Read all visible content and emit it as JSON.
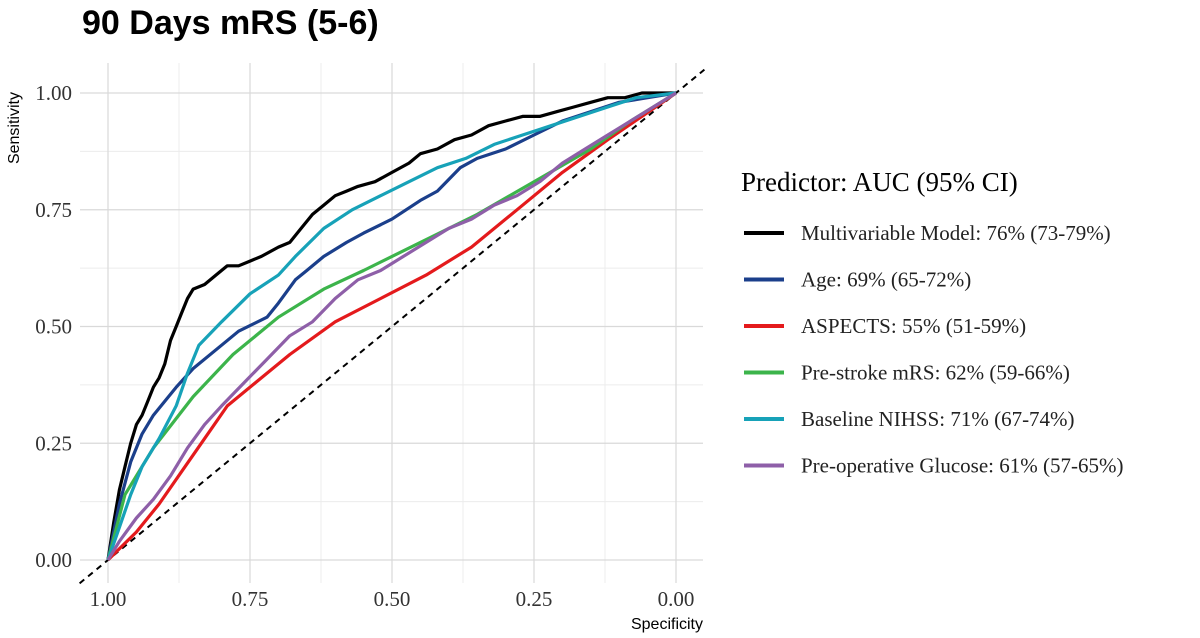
{
  "chart_data": {
    "type": "line",
    "title": "90 Days mRS (5-6)",
    "xlabel": "Specificity",
    "ylabel": "Sensitivity",
    "xlim": [
      1.0,
      0.0
    ],
    "ylim": [
      0.0,
      1.0
    ],
    "x_reversed": true,
    "xticks": [
      "1.00",
      "0.75",
      "0.50",
      "0.25",
      "0.00"
    ],
    "yticks": [
      "0.00",
      "0.25",
      "0.50",
      "0.75",
      "1.00"
    ],
    "grid": true,
    "legend_title": "Predictor: AUC (95% CI)",
    "legend_position": "right",
    "reference_line": {
      "style": "dashed",
      "from": [
        1.0,
        0.0
      ],
      "to": [
        0.0,
        1.0
      ]
    },
    "series": [
      {
        "name": "Multivariable Model: 76% (73-79%)",
        "color": "#000000",
        "points": [
          [
            1.0,
            0.0
          ],
          [
            0.99,
            0.08
          ],
          [
            0.98,
            0.15
          ],
          [
            0.97,
            0.2
          ],
          [
            0.96,
            0.25
          ],
          [
            0.95,
            0.29
          ],
          [
            0.94,
            0.31
          ],
          [
            0.93,
            0.34
          ],
          [
            0.92,
            0.37
          ],
          [
            0.91,
            0.39
          ],
          [
            0.9,
            0.42
          ],
          [
            0.89,
            0.47
          ],
          [
            0.88,
            0.5
          ],
          [
            0.87,
            0.53
          ],
          [
            0.86,
            0.56
          ],
          [
            0.85,
            0.58
          ],
          [
            0.83,
            0.59
          ],
          [
            0.81,
            0.61
          ],
          [
            0.79,
            0.63
          ],
          [
            0.77,
            0.63
          ],
          [
            0.75,
            0.64
          ],
          [
            0.73,
            0.65
          ],
          [
            0.7,
            0.67
          ],
          [
            0.68,
            0.68
          ],
          [
            0.66,
            0.71
          ],
          [
            0.64,
            0.74
          ],
          [
            0.62,
            0.76
          ],
          [
            0.6,
            0.78
          ],
          [
            0.58,
            0.79
          ],
          [
            0.56,
            0.8
          ],
          [
            0.53,
            0.81
          ],
          [
            0.5,
            0.83
          ],
          [
            0.47,
            0.85
          ],
          [
            0.45,
            0.87
          ],
          [
            0.42,
            0.88
          ],
          [
            0.39,
            0.9
          ],
          [
            0.36,
            0.91
          ],
          [
            0.33,
            0.93
          ],
          [
            0.3,
            0.94
          ],
          [
            0.27,
            0.95
          ],
          [
            0.24,
            0.95
          ],
          [
            0.21,
            0.96
          ],
          [
            0.18,
            0.97
          ],
          [
            0.15,
            0.98
          ],
          [
            0.12,
            0.99
          ],
          [
            0.09,
            0.99
          ],
          [
            0.06,
            1.0
          ],
          [
            0.03,
            1.0
          ],
          [
            0.0,
            1.0
          ]
        ]
      },
      {
        "name": "Age: 69% (65-72%)",
        "color": "#1b3f8b",
        "points": [
          [
            1.0,
            0.0
          ],
          [
            0.99,
            0.06
          ],
          [
            0.98,
            0.12
          ],
          [
            0.96,
            0.21
          ],
          [
            0.94,
            0.27
          ],
          [
            0.92,
            0.31
          ],
          [
            0.9,
            0.34
          ],
          [
            0.88,
            0.37
          ],
          [
            0.85,
            0.41
          ],
          [
            0.8,
            0.46
          ],
          [
            0.77,
            0.49
          ],
          [
            0.72,
            0.52
          ],
          [
            0.7,
            0.55
          ],
          [
            0.67,
            0.6
          ],
          [
            0.65,
            0.62
          ],
          [
            0.62,
            0.65
          ],
          [
            0.58,
            0.68
          ],
          [
            0.55,
            0.7
          ],
          [
            0.5,
            0.73
          ],
          [
            0.45,
            0.77
          ],
          [
            0.42,
            0.79
          ],
          [
            0.38,
            0.84
          ],
          [
            0.35,
            0.86
          ],
          [
            0.3,
            0.88
          ],
          [
            0.25,
            0.91
          ],
          [
            0.2,
            0.94
          ],
          [
            0.15,
            0.96
          ],
          [
            0.1,
            0.98
          ],
          [
            0.05,
            0.99
          ],
          [
            0.0,
            1.0
          ]
        ]
      },
      {
        "name": "ASPECTS: 55% (51-59%)",
        "color": "#e41a1c",
        "points": [
          [
            1.0,
            0.0
          ],
          [
            0.95,
            0.06
          ],
          [
            0.91,
            0.12
          ],
          [
            0.87,
            0.19
          ],
          [
            0.83,
            0.26
          ],
          [
            0.79,
            0.33
          ],
          [
            0.74,
            0.38
          ],
          [
            0.68,
            0.44
          ],
          [
            0.6,
            0.51
          ],
          [
            0.52,
            0.56
          ],
          [
            0.44,
            0.61
          ],
          [
            0.36,
            0.67
          ],
          [
            0.28,
            0.75
          ],
          [
            0.2,
            0.83
          ],
          [
            0.12,
            0.9
          ],
          [
            0.06,
            0.95
          ],
          [
            0.0,
            1.0
          ]
        ]
      },
      {
        "name": "Pre-stroke mRS: 62% (59-66%)",
        "color": "#3cb44b",
        "points": [
          [
            1.0,
            0.0
          ],
          [
            0.97,
            0.14
          ],
          [
            0.92,
            0.24
          ],
          [
            0.85,
            0.35
          ],
          [
            0.78,
            0.44
          ],
          [
            0.7,
            0.52
          ],
          [
            0.62,
            0.58
          ],
          [
            0.55,
            0.62
          ],
          [
            0.45,
            0.68
          ],
          [
            0.35,
            0.74
          ],
          [
            0.25,
            0.81
          ],
          [
            0.15,
            0.88
          ],
          [
            0.08,
            0.94
          ],
          [
            0.0,
            1.0
          ]
        ]
      },
      {
        "name": "Baseline NIHSS: 71% (67-74%)",
        "color": "#17a2b8",
        "points": [
          [
            1.0,
            0.0
          ],
          [
            0.98,
            0.07
          ],
          [
            0.96,
            0.14
          ],
          [
            0.94,
            0.2
          ],
          [
            0.91,
            0.26
          ],
          [
            0.88,
            0.33
          ],
          [
            0.86,
            0.4
          ],
          [
            0.84,
            0.46
          ],
          [
            0.8,
            0.51
          ],
          [
            0.75,
            0.57
          ],
          [
            0.7,
            0.61
          ],
          [
            0.67,
            0.65
          ],
          [
            0.62,
            0.71
          ],
          [
            0.57,
            0.75
          ],
          [
            0.52,
            0.78
          ],
          [
            0.47,
            0.81
          ],
          [
            0.42,
            0.84
          ],
          [
            0.37,
            0.86
          ],
          [
            0.32,
            0.89
          ],
          [
            0.27,
            0.91
          ],
          [
            0.22,
            0.93
          ],
          [
            0.17,
            0.95
          ],
          [
            0.12,
            0.97
          ],
          [
            0.07,
            0.99
          ],
          [
            0.0,
            1.0
          ]
        ]
      },
      {
        "name": "Pre-operative Glucose: 61% (57-65%)",
        "color": "#8e5fa8",
        "points": [
          [
            1.0,
            0.0
          ],
          [
            0.98,
            0.04
          ],
          [
            0.95,
            0.09
          ],
          [
            0.92,
            0.13
          ],
          [
            0.89,
            0.18
          ],
          [
            0.86,
            0.24
          ],
          [
            0.83,
            0.29
          ],
          [
            0.8,
            0.33
          ],
          [
            0.76,
            0.38
          ],
          [
            0.72,
            0.43
          ],
          [
            0.68,
            0.48
          ],
          [
            0.64,
            0.51
          ],
          [
            0.6,
            0.56
          ],
          [
            0.56,
            0.6
          ],
          [
            0.52,
            0.62
          ],
          [
            0.48,
            0.65
          ],
          [
            0.44,
            0.68
          ],
          [
            0.4,
            0.71
          ],
          [
            0.36,
            0.73
          ],
          [
            0.32,
            0.76
          ],
          [
            0.28,
            0.78
          ],
          [
            0.24,
            0.81
          ],
          [
            0.2,
            0.85
          ],
          [
            0.16,
            0.88
          ],
          [
            0.12,
            0.91
          ],
          [
            0.08,
            0.94
          ],
          [
            0.04,
            0.97
          ],
          [
            0.0,
            1.0
          ]
        ]
      }
    ]
  }
}
